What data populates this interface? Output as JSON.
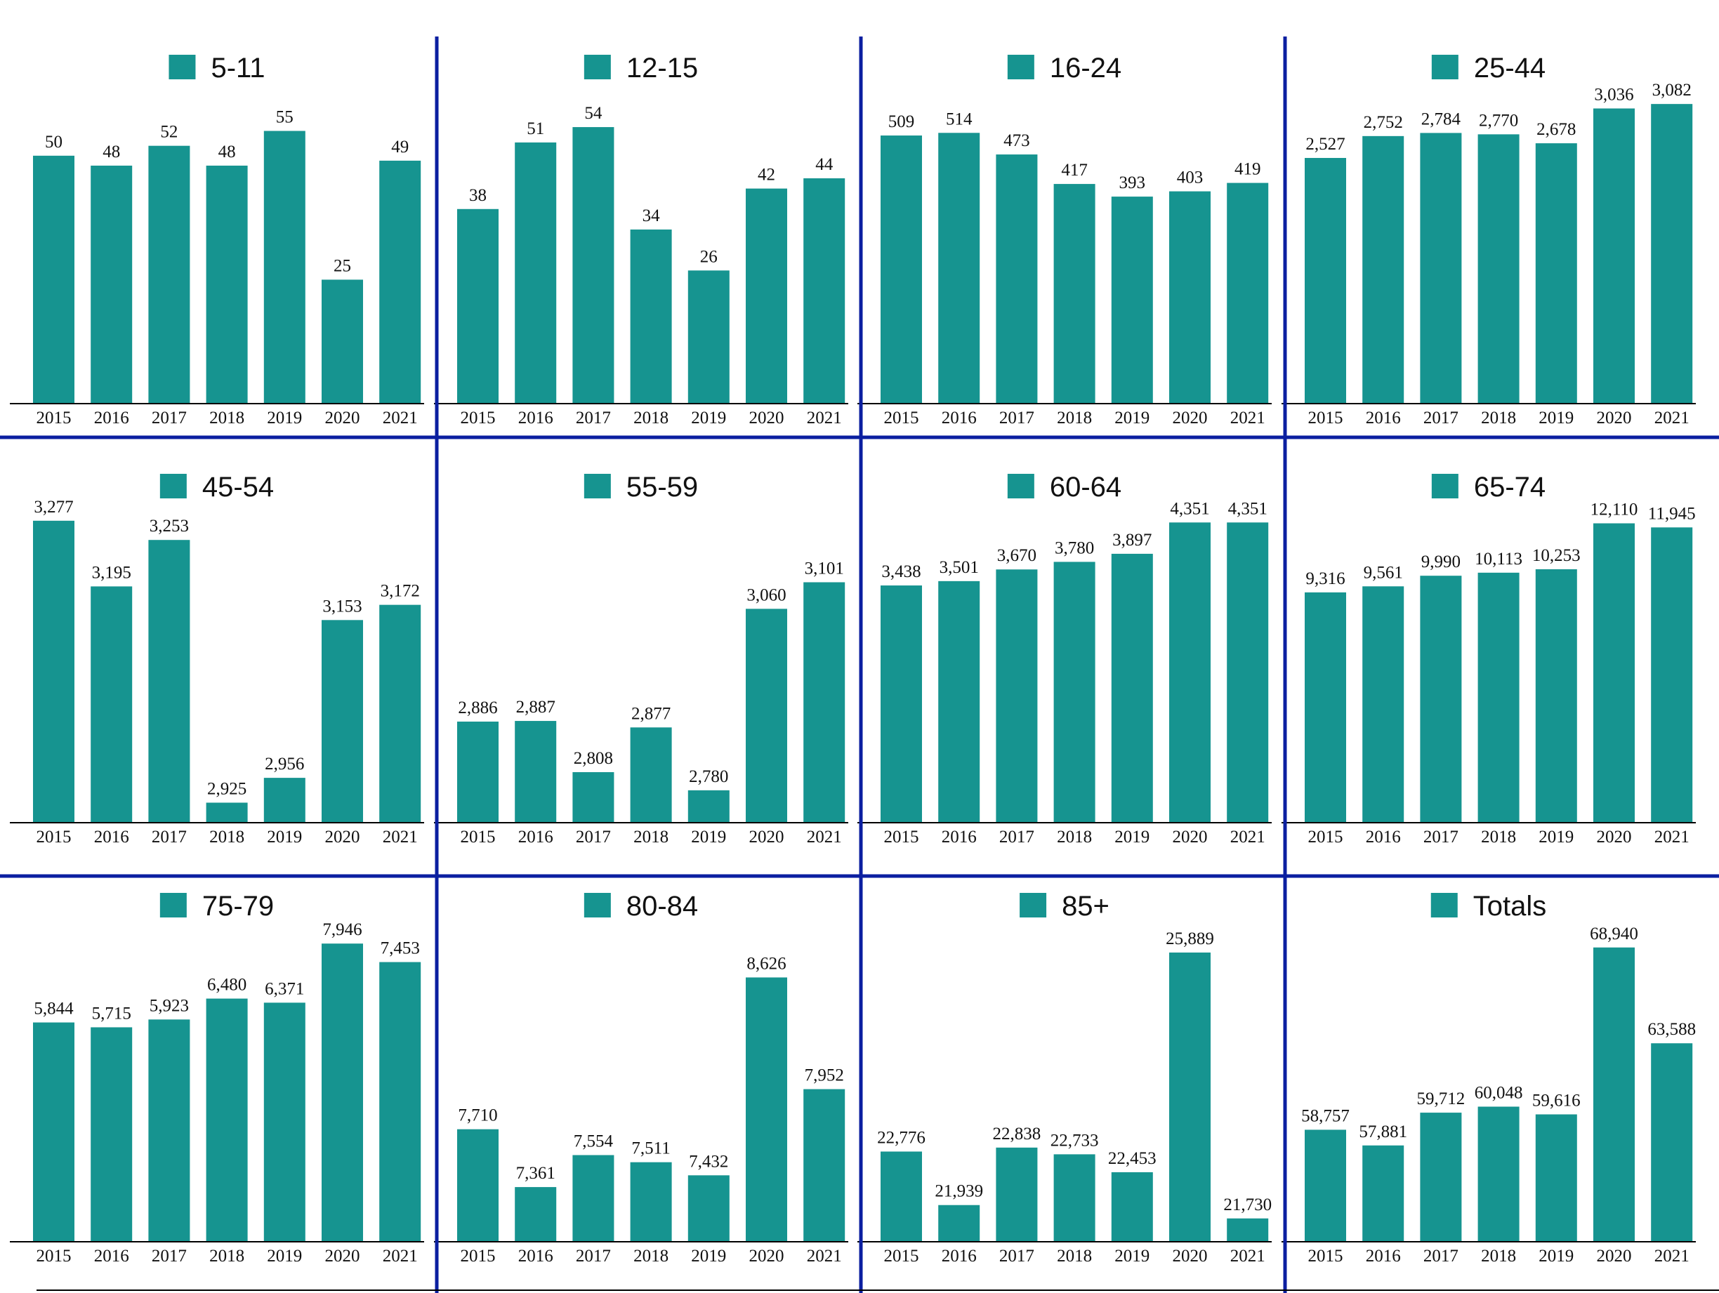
{
  "colors": {
    "bar": "#169490",
    "divider": "#0b1fa0",
    "axis": "#000000",
    "text": "#111111"
  },
  "chart_data": [
    {
      "type": "bar",
      "title": "5-11",
      "legend": "5-11",
      "categories": [
        "2015",
        "2016",
        "2017",
        "2018",
        "2019",
        "2020",
        "2021"
      ],
      "values": [
        50,
        48,
        52,
        48,
        55,
        25,
        49
      ],
      "labels": [
        "50",
        "48",
        "52",
        "48",
        "55",
        "25",
        "49"
      ],
      "ylim": [
        0,
        63
      ]
    },
    {
      "type": "bar",
      "title": "12-15",
      "legend": "12-15",
      "categories": [
        "2015",
        "2016",
        "2017",
        "2018",
        "2019",
        "2020",
        "2021"
      ],
      "values": [
        38,
        51,
        54,
        34,
        26,
        42,
        44
      ],
      "labels": [
        "38",
        "51",
        "54",
        "34",
        "26",
        "42",
        "44"
      ],
      "ylim": [
        0,
        61
      ]
    },
    {
      "type": "bar",
      "title": "16-24",
      "legend": "16-24",
      "categories": [
        "2015",
        "2016",
        "2017",
        "2018",
        "2019",
        "2020",
        "2021"
      ],
      "values": [
        509,
        514,
        473,
        417,
        393,
        403,
        419
      ],
      "labels": [
        "509",
        "514",
        "473",
        "417",
        "393",
        "403",
        "419"
      ],
      "ylim": [
        0,
        593
      ]
    },
    {
      "type": "bar",
      "title": "25-44",
      "legend": "25-44",
      "categories": [
        "2015",
        "2016",
        "2017",
        "2018",
        "2019",
        "2020",
        "2021"
      ],
      "values": [
        2527,
        2752,
        2784,
        2770,
        2678,
        3036,
        3082
      ],
      "labels": [
        "2,527",
        "2,752",
        "2,784",
        "2,770",
        "2,678",
        "3,036",
        "3,082"
      ],
      "ylim": [
        0,
        3213
      ]
    },
    {
      "type": "bar",
      "title": "45-54",
      "legend": "45-54",
      "categories": [
        "2015",
        "2016",
        "2017",
        "2018",
        "2019",
        "2020",
        "2021"
      ],
      "values": [
        3277,
        3195,
        3253,
        2925,
        2956,
        3153,
        3172
      ],
      "labels": [
        "3,277",
        "3,195",
        "3,253",
        "2,925",
        "2,956",
        "3,153",
        "3,172"
      ],
      "ylim": [
        2900,
        3290
      ]
    },
    {
      "type": "bar",
      "title": "55-59",
      "legend": "55-59",
      "categories": [
        "2015",
        "2016",
        "2017",
        "2018",
        "2019",
        "2020",
        "2021"
      ],
      "values": [
        2886,
        2887,
        2808,
        2877,
        2780,
        3060,
        3101
      ],
      "labels": [
        "2,886",
        "2,887",
        "2,808",
        "2,877",
        "2,780",
        "3,060",
        "3,101"
      ],
      "ylim": [
        2730,
        3212
      ]
    },
    {
      "type": "bar",
      "title": "60-64",
      "legend": "60-64",
      "categories": [
        "2015",
        "2016",
        "2017",
        "2018",
        "2019",
        "2020",
        "2021"
      ],
      "values": [
        3438,
        3501,
        3670,
        3780,
        3897,
        4351,
        4351
      ],
      "labels": [
        "3,438",
        "3,501",
        "3,670",
        "3,780",
        "3,897",
        "4,351",
        "4,351"
      ],
      "ylim": [
        0,
        4527
      ]
    },
    {
      "type": "bar",
      "title": "65-74",
      "legend": "65-74",
      "categories": [
        "2015",
        "2016",
        "2017",
        "2018",
        "2019",
        "2020",
        "2021"
      ],
      "values": [
        9316,
        9561,
        9990,
        10113,
        10253,
        12110,
        11945
      ],
      "labels": [
        "9,316",
        "9,561",
        "9,990",
        "10,113",
        "10,253",
        "12,110",
        "11,945"
      ],
      "ylim": [
        0,
        12636
      ]
    },
    {
      "type": "bar",
      "title": "75-79",
      "legend": "75-79",
      "categories": [
        "2015",
        "2016",
        "2017",
        "2018",
        "2019",
        "2020",
        "2021"
      ],
      "values": [
        5844,
        5715,
        5923,
        6480,
        6371,
        7946,
        7453
      ],
      "labels": [
        "5,844",
        "5,715",
        "5,923",
        "6,480",
        "6,371",
        "7,946",
        "7,453"
      ],
      "ylim": [
        0,
        8324
      ]
    },
    {
      "type": "bar",
      "title": "80-84",
      "legend": "80-84",
      "categories": [
        "2015",
        "2016",
        "2017",
        "2018",
        "2019",
        "2020",
        "2021"
      ],
      "values": [
        7710,
        7361,
        7554,
        7511,
        7432,
        8626,
        7952
      ],
      "labels": [
        "7,710",
        "7,361",
        "7,554",
        "7,511",
        "7,432",
        "8,626",
        "7,952"
      ],
      "ylim": [
        7031,
        8916
      ]
    },
    {
      "type": "bar",
      "title": "85+",
      "legend": "85+",
      "categories": [
        "2015",
        "2016",
        "2017",
        "2018",
        "2019",
        "2020",
        "2021"
      ],
      "values": [
        22776,
        21939,
        22838,
        22733,
        22453,
        25889,
        21730
      ],
      "labels": [
        "22,776",
        "21,939",
        "22,838",
        "22,733",
        "22,453",
        "25,889",
        "21,730"
      ],
      "ylim": [
        21365,
        26251
      ]
    },
    {
      "type": "bar",
      "title": "Totals",
      "legend": "Totals",
      "categories": [
        "2015",
        "2016",
        "2017",
        "2018",
        "2019",
        "2020",
        "2021"
      ],
      "values": [
        58757,
        57881,
        59712,
        60048,
        59616,
        68940,
        63588
      ],
      "labels": [
        "58,757",
        "57,881",
        "59,712",
        "60,048",
        "59,616",
        "68,940",
        "63,588"
      ],
      "ylim": [
        52500,
        69950
      ]
    }
  ]
}
